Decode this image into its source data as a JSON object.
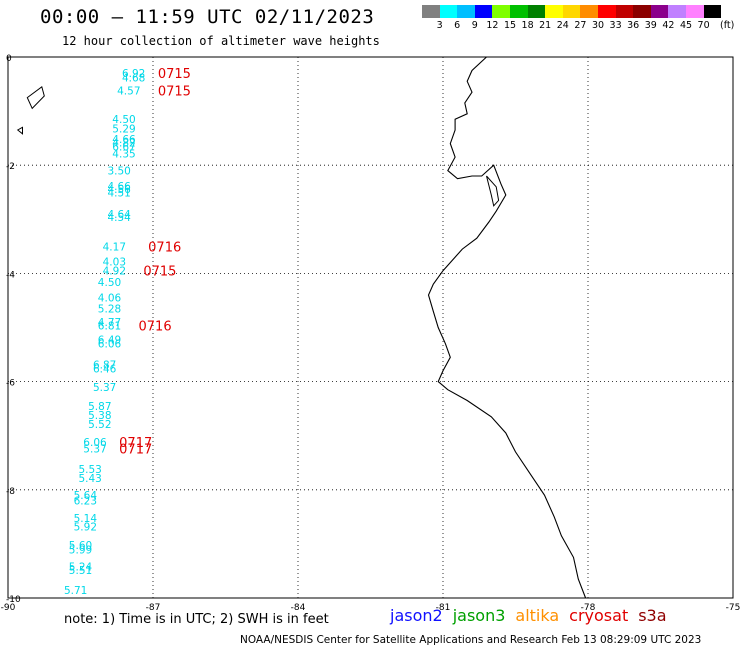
{
  "header": {
    "title": "00:00 – 11:59 UTC 02/11/2023",
    "subtitle": "12 hour collection of altimeter wave heights"
  },
  "colorbar": {
    "colors": [
      "#808080",
      "#00ffff",
      "#00bfff",
      "#0000ff",
      "#7fff00",
      "#00c000",
      "#008000",
      "#ffff00",
      "#ffd700",
      "#ff8c00",
      "#ff0000",
      "#c00000",
      "#8b0000",
      "#8b008b",
      "#c080ff",
      "#ff80ff",
      "#000000"
    ],
    "labels": [
      "3",
      "6",
      "9",
      "12",
      "15",
      "18",
      "21",
      "24",
      "27",
      "30",
      "33",
      "36",
      "39",
      "42",
      "45",
      "70"
    ],
    "unit": "(ft)"
  },
  "axes": {
    "x_ticks": [
      "-90",
      "-87",
      "-84",
      "-81",
      "-78",
      "-75"
    ],
    "y_ticks": [
      "0",
      "-2",
      "-4",
      "-6",
      "-8",
      "-10"
    ],
    "xlim": [
      -90,
      -75
    ],
    "ylim": [
      -10,
      0
    ]
  },
  "chart_data": {
    "type": "scatter",
    "title": "12 hour collection of altimeter wave heights",
    "xlim": [
      -90,
      -75
    ],
    "ylim": [
      -10,
      0
    ],
    "wave_heights": [
      {
        "x": -87.4,
        "y": -0.3,
        "label": "6.92"
      },
      {
        "x": -87.4,
        "y": -0.38,
        "label": "4.68"
      },
      {
        "x": -87.5,
        "y": -0.62,
        "label": "4.57"
      },
      {
        "x": -87.6,
        "y": -1.15,
        "label": "4.50"
      },
      {
        "x": -87.6,
        "y": -1.32,
        "label": "5.29"
      },
      {
        "x": -87.6,
        "y": -1.52,
        "label": "4.66"
      },
      {
        "x": -87.6,
        "y": -1.58,
        "label": "4.82"
      },
      {
        "x": -87.6,
        "y": -1.65,
        "label": "6.67"
      },
      {
        "x": -87.6,
        "y": -1.78,
        "label": "4.35"
      },
      {
        "x": -87.7,
        "y": -2.1,
        "label": "3.50"
      },
      {
        "x": -87.7,
        "y": -2.38,
        "label": "4.66"
      },
      {
        "x": -87.7,
        "y": -2.44,
        "label": "4.56"
      },
      {
        "x": -87.7,
        "y": -2.5,
        "label": "4.51"
      },
      {
        "x": -87.7,
        "y": -2.9,
        "label": "4.64"
      },
      {
        "x": -87.7,
        "y": -2.96,
        "label": "4.54"
      },
      {
        "x": -87.8,
        "y": -3.5,
        "label": "4.17"
      },
      {
        "x": -87.8,
        "y": -3.78,
        "label": "4.03"
      },
      {
        "x": -87.8,
        "y": -3.95,
        "label": "4.92"
      },
      {
        "x": -87.9,
        "y": -4.16,
        "label": "4.50"
      },
      {
        "x": -87.9,
        "y": -4.45,
        "label": "4.06"
      },
      {
        "x": -87.9,
        "y": -4.65,
        "label": "5.28"
      },
      {
        "x": -87.9,
        "y": -4.9,
        "label": "4.77"
      },
      {
        "x": -87.9,
        "y": -4.96,
        "label": "6.81"
      },
      {
        "x": -87.9,
        "y": -5.22,
        "label": "6.49"
      },
      {
        "x": -87.9,
        "y": -5.3,
        "label": "6.06"
      },
      {
        "x": -88.0,
        "y": -5.68,
        "label": "6.87"
      },
      {
        "x": -88.0,
        "y": -5.76,
        "label": "6.46"
      },
      {
        "x": -88.0,
        "y": -6.1,
        "label": "5.37"
      },
      {
        "x": -88.1,
        "y": -6.45,
        "label": "5.87"
      },
      {
        "x": -88.1,
        "y": -6.62,
        "label": "5.38"
      },
      {
        "x": -88.1,
        "y": -6.78,
        "label": "5.52"
      },
      {
        "x": -88.2,
        "y": -7.12,
        "label": "6.06"
      },
      {
        "x": -88.2,
        "y": -7.24,
        "label": "5.37"
      },
      {
        "x": -88.3,
        "y": -7.62,
        "label": "5.53"
      },
      {
        "x": -88.3,
        "y": -7.78,
        "label": "5.43"
      },
      {
        "x": -88.4,
        "y": -8.1,
        "label": "5.64"
      },
      {
        "x": -88.4,
        "y": -8.2,
        "label": "6.23"
      },
      {
        "x": -88.4,
        "y": -8.52,
        "label": "5.14"
      },
      {
        "x": -88.4,
        "y": -8.68,
        "label": "5.92"
      },
      {
        "x": -88.5,
        "y": -9.02,
        "label": "5.60"
      },
      {
        "x": -88.5,
        "y": -9.1,
        "label": "5.99"
      },
      {
        "x": -88.5,
        "y": -9.42,
        "label": "5.24"
      },
      {
        "x": -88.5,
        "y": -9.48,
        "label": "5.51"
      },
      {
        "x": -88.6,
        "y": -9.85,
        "label": "5.71"
      }
    ],
    "time_labels": [
      {
        "x": -86.9,
        "y": -0.3,
        "label": "0715"
      },
      {
        "x": -86.9,
        "y": -0.62,
        "label": "0715"
      },
      {
        "x": -87.1,
        "y": -3.5,
        "label": "0716"
      },
      {
        "x": -87.2,
        "y": -3.95,
        "label": "0715"
      },
      {
        "x": -87.3,
        "y": -4.96,
        "label": "0716"
      },
      {
        "x": -87.7,
        "y": -7.12,
        "label": "0717"
      },
      {
        "x": -87.7,
        "y": -7.24,
        "label": "0717"
      }
    ],
    "coastline": [
      [
        -80.1,
        0.0
      ],
      [
        -80.4,
        -0.25
      ],
      [
        -80.5,
        -0.45
      ],
      [
        -80.4,
        -0.65
      ],
      [
        -80.55,
        -0.85
      ],
      [
        -80.5,
        -1.05
      ],
      [
        -80.75,
        -1.15
      ],
      [
        -80.75,
        -1.35
      ],
      [
        -80.85,
        -1.6
      ],
      [
        -80.75,
        -1.85
      ],
      [
        -80.9,
        -2.1
      ],
      [
        -80.7,
        -2.25
      ],
      [
        -80.4,
        -2.2
      ],
      [
        -80.2,
        -2.2
      ],
      [
        -79.95,
        -2.0
      ],
      [
        -79.8,
        -2.35
      ],
      [
        -79.7,
        -2.55
      ],
      [
        -79.9,
        -2.85
      ],
      [
        -80.05,
        -3.05
      ],
      [
        -80.3,
        -3.35
      ],
      [
        -80.6,
        -3.55
      ],
      [
        -80.8,
        -3.75
      ],
      [
        -81.0,
        -3.95
      ],
      [
        -81.2,
        -4.2
      ],
      [
        -81.3,
        -4.4
      ],
      [
        -81.2,
        -4.7
      ],
      [
        -81.1,
        -5.0
      ],
      [
        -80.95,
        -5.3
      ],
      [
        -80.85,
        -5.55
      ],
      [
        -81.0,
        -5.8
      ],
      [
        -81.1,
        -6.0
      ],
      [
        -80.9,
        -6.15
      ],
      [
        -80.5,
        -6.35
      ],
      [
        -80.0,
        -6.65
      ],
      [
        -79.7,
        -6.95
      ],
      [
        -79.5,
        -7.3
      ],
      [
        -79.2,
        -7.7
      ],
      [
        -78.9,
        -8.1
      ],
      [
        -78.7,
        -8.5
      ],
      [
        -78.55,
        -8.85
      ],
      [
        -78.3,
        -9.25
      ],
      [
        -78.2,
        -9.65
      ],
      [
        -78.05,
        -10.0
      ]
    ],
    "bay_outline": [
      [
        -80.1,
        -2.2
      ],
      [
        -80.0,
        -2.55
      ],
      [
        -79.95,
        -2.75
      ],
      [
        -79.85,
        -2.65
      ],
      [
        -79.9,
        -2.4
      ],
      [
        -80.1,
        -2.2
      ]
    ],
    "islands": [
      {
        "points": [
          [
            -89.6,
            -0.75
          ],
          [
            -89.3,
            -0.55
          ],
          [
            -89.25,
            -0.72
          ],
          [
            -89.5,
            -0.95
          ],
          [
            -89.6,
            -0.75
          ]
        ]
      },
      {
        "points": [
          [
            -89.8,
            -1.35
          ],
          [
            -89.7,
            -1.3
          ],
          [
            -89.7,
            -1.42
          ],
          [
            -89.8,
            -1.35
          ]
        ]
      }
    ]
  },
  "footer": {
    "note": "note: 1) Time is in UTC; 2) SWH is in feet",
    "credit": "NOAA/NESDIS Center for Satellite Applications and Research    Feb 13 08:29:09 UTC 2023",
    "satellites": [
      {
        "name": "jason2",
        "color": "#1010ff"
      },
      {
        "name": "jason3",
        "color": "#00a000"
      },
      {
        "name": "altika",
        "color": "#ff9000"
      },
      {
        "name": "cryosat",
        "color": "#e00000"
      },
      {
        "name": "s3a",
        "color": "#900000"
      }
    ]
  }
}
